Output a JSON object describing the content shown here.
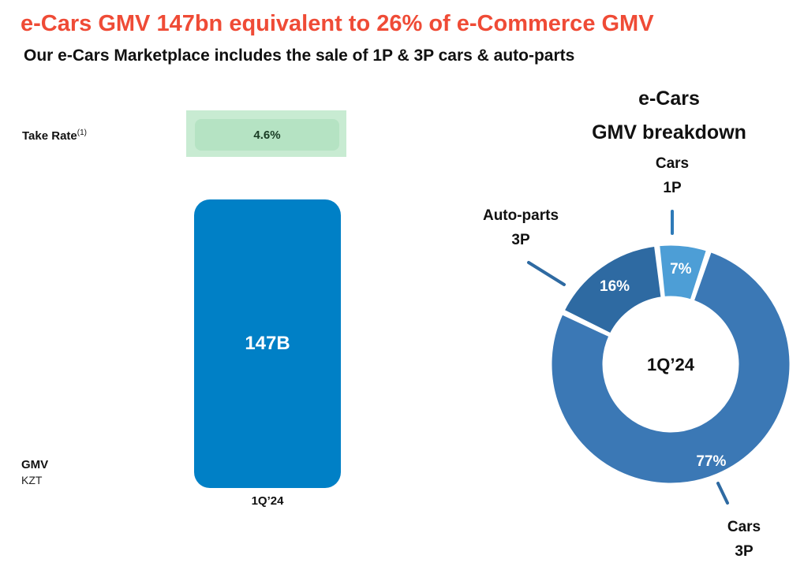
{
  "header": {
    "title": "e-Cars GMV 147bn equivalent to 26% of e-Commerce GMV",
    "subtitle": "Our e-Cars Marketplace includes the sale of 1P & 3P cars & auto-parts"
  },
  "take_rate": {
    "label": "Take Rate",
    "footnote": "(1)",
    "value": "4.6%"
  },
  "bar_panel": {
    "value_label": "147B",
    "period": "1Q’24",
    "ylabel": "GMV",
    "unit": "KZT"
  },
  "donut_panel": {
    "title_line1": "e-Cars",
    "title_line2": "GMV breakdown",
    "center_label": "1Q’24",
    "callouts": {
      "cars_1p": [
        "Cars",
        "1P"
      ],
      "auto_parts_3p": [
        "Auto-parts",
        "3P"
      ],
      "cars_3p": [
        "Cars",
        "3P"
      ]
    }
  },
  "colors": {
    "title": "#ef4b36",
    "bar": "#0080c6",
    "cars_3p": "#3b78b5",
    "auto_parts_3p": "#2e6aa2",
    "cars_1p": "#4d9ed6",
    "take_rate_bg": "#c8ebd2"
  },
  "chart_data": [
    {
      "type": "bar",
      "categories": [
        "1Q’24"
      ],
      "values": [
        147
      ],
      "data_labels": [
        "147B"
      ],
      "xlabel": "",
      "ylabel": "GMV",
      "unit": "KZT"
    },
    {
      "type": "pie",
      "variant": "donut",
      "title": "e-Cars GMV breakdown",
      "center_label": "1Q’24",
      "slices": [
        {
          "label": "Cars 1P",
          "value": 7,
          "display": "7%",
          "color": "#4d9ed6"
        },
        {
          "label": "Cars 3P",
          "value": 77,
          "display": "77%",
          "color": "#3b78b5"
        },
        {
          "label": "Auto-parts 3P",
          "value": 16,
          "display": "16%",
          "color": "#2e6aa2"
        }
      ]
    }
  ]
}
